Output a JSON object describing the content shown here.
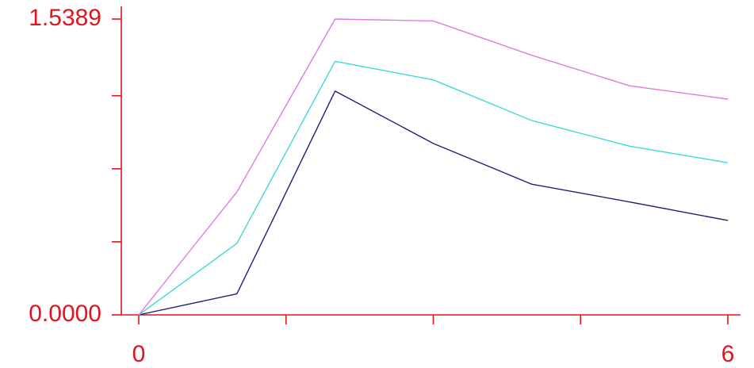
{
  "chart_data": {
    "type": "line",
    "x": [
      0,
      1,
      2,
      3,
      4,
      5,
      6
    ],
    "series": [
      {
        "values": [
          0.0,
          0.1095,
          1.1642,
          0.8916,
          0.6802,
          0.5874,
          0.4911
        ],
        "color": "#1f1f7a"
      },
      {
        "values": [
          0.0,
          0.3722,
          1.3189,
          1.2226,
          1.0114,
          0.8773,
          0.7916
        ],
        "color": "#3fd8d8"
      },
      {
        "values": [
          0.0,
          0.6398,
          1.5389,
          1.5289,
          1.3509,
          1.1917,
          1.1222
        ],
        "color": "#e07ae0"
      }
    ],
    "xlim": [
      0,
      6
    ],
    "ylim": [
      0.0,
      1.5389
    ],
    "axis_color": "#e0141e",
    "x_tick_labels": [
      {
        "value": 0,
        "text": "0"
      },
      {
        "value": 6,
        "text": "6"
      }
    ],
    "x_ticks_unlabeled": [
      1.5,
      3,
      4.5
    ],
    "y_tick_labels": [
      {
        "value": 0.0,
        "text": "0.0000"
      },
      {
        "value": 1.5389,
        "text": "1.5389"
      }
    ],
    "y_ticks_unlabeled": [
      0.38,
      0.76,
      1.14
    ],
    "grid": false,
    "legend": "none"
  }
}
